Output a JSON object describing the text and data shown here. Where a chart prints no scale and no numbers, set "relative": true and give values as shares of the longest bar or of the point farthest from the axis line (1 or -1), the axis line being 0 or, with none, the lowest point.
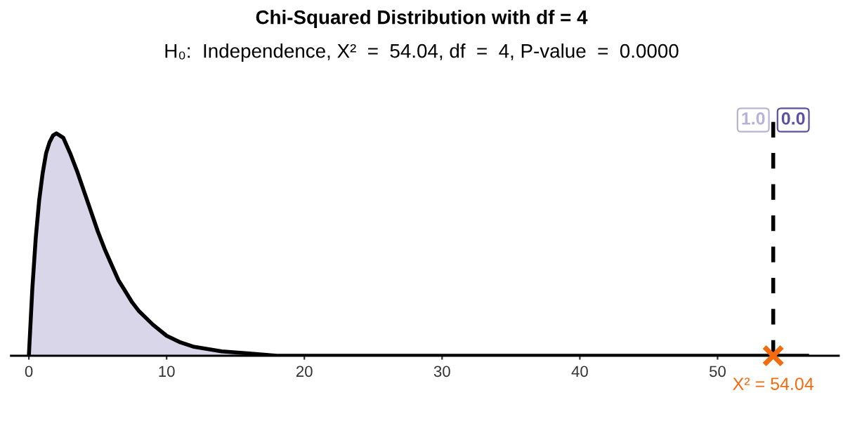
{
  "chart_data": {
    "type": "area",
    "title": "Chi-Squared Distribution with df = 4",
    "subtitle": "H₀:  Independence, X²  =  54.04, df  =  4, P-value  =  0.0000",
    "relative": true,
    "x": [
      0,
      0.25,
      0.5,
      0.75,
      1,
      1.25,
      1.5,
      1.75,
      2,
      2.5,
      3,
      3.5,
      4,
      4.5,
      5,
      5.5,
      6,
      6.5,
      7,
      7.5,
      8,
      9,
      10,
      11,
      12,
      13,
      14,
      16,
      18,
      20,
      25,
      30,
      40,
      50,
      56.5
    ],
    "series": [
      {
        "color": "#d9d6e9",
        "values": [
          0,
          0.3,
          0.53,
          0.7,
          0.82,
          0.91,
          0.96,
          0.99,
          1,
          0.98,
          0.91,
          0.83,
          0.74,
          0.65,
          0.56,
          0.48,
          0.41,
          0.34,
          0.29,
          0.24,
          0.2,
          0.14,
          0.09,
          0.06,
          0.04,
          0.03,
          0.02,
          0.01,
          0.0,
          0.0,
          0,
          0,
          0,
          0,
          0
        ]
      }
    ],
    "xlim": [
      -1.3,
      58.8
    ],
    "xticks": [
      0,
      10,
      20,
      30,
      40,
      50
    ],
    "tick_labels": "x",
    "grid": false,
    "ref_lines": [
      {
        "axis": "x",
        "value": 54.04,
        "color": "#000000",
        "line_style": "dashed"
      }
    ],
    "annotations": [
      "1.0",
      "0.0",
      {
        "text": "X² = 54.04",
        "x": 54.04,
        "y": 0
      }
    ]
  }
}
